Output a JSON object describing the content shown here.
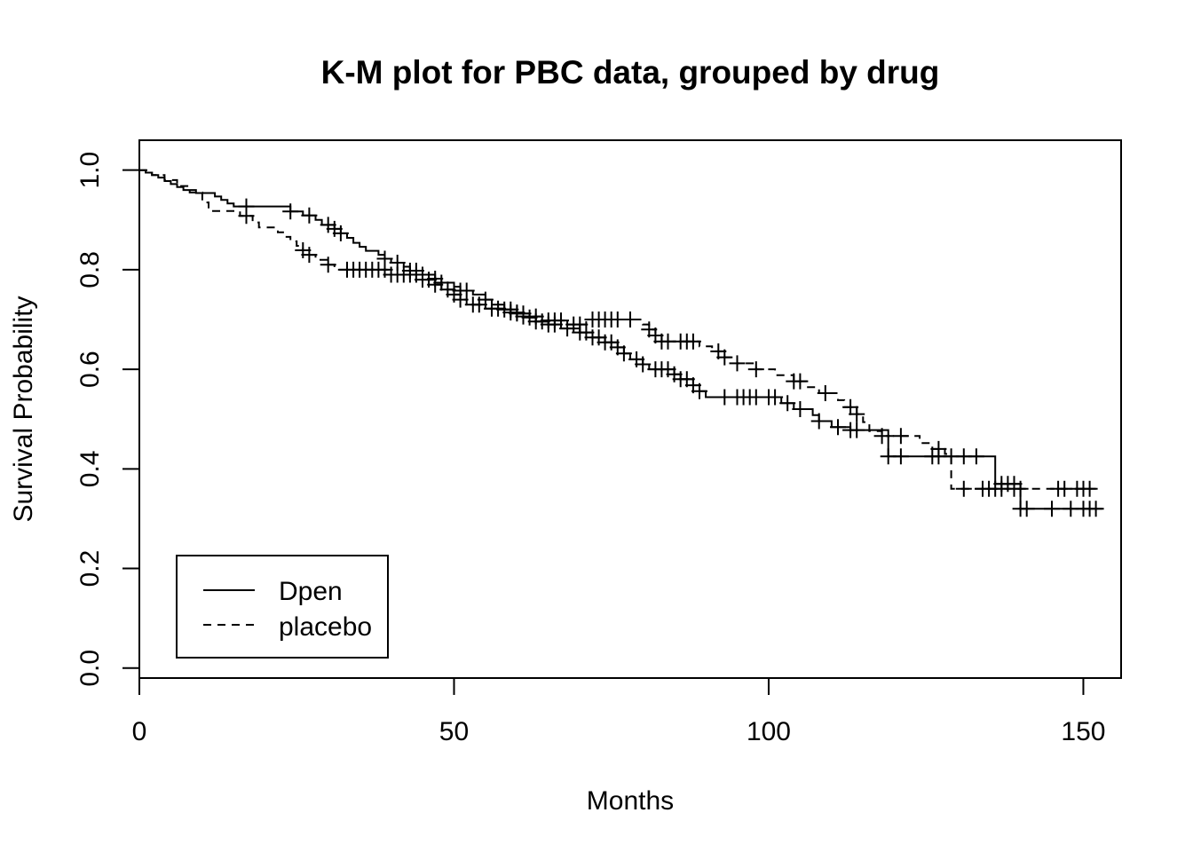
{
  "chart_data": {
    "type": "line",
    "subtype": "kaplan-meier-step",
    "title": "K-M plot for PBC data, grouped by drug",
    "xlabel": "Months",
    "ylabel": "Survival Probability",
    "xlim": [
      0,
      156
    ],
    "ylim": [
      -0.02,
      1.06
    ],
    "x_ticks": [
      0,
      50,
      100,
      150
    ],
    "x_tick_labels": [
      "0",
      "50",
      "100",
      "150"
    ],
    "y_ticks": [
      0.0,
      0.2,
      0.4,
      0.6,
      0.8,
      1.0
    ],
    "y_tick_labels": [
      "0.0",
      "0.2",
      "0.4",
      "0.6",
      "0.8",
      "1.0"
    ],
    "grid": false,
    "legend": {
      "position": "bottom-left",
      "entries": [
        "Dpen",
        "placebo"
      ]
    },
    "series": [
      {
        "name": "Dpen",
        "line_style": "solid",
        "steps": [
          [
            0,
            1.0
          ],
          [
            1,
            0.995
          ],
          [
            2,
            0.99
          ],
          [
            3,
            0.985
          ],
          [
            4,
            0.978
          ],
          [
            5,
            0.972
          ],
          [
            6,
            0.966
          ],
          [
            7,
            0.96
          ],
          [
            9,
            0.954
          ],
          [
            12,
            0.947
          ],
          [
            13,
            0.94
          ],
          [
            14,
            0.933
          ],
          [
            15,
            0.927
          ],
          [
            24,
            0.917
          ],
          [
            26,
            0.909
          ],
          [
            28,
            0.9
          ],
          [
            29,
            0.89
          ],
          [
            31,
            0.882
          ],
          [
            32,
            0.873
          ],
          [
            33,
            0.864
          ],
          [
            34,
            0.854
          ],
          [
            35,
            0.846
          ],
          [
            36,
            0.838
          ],
          [
            38,
            0.83
          ],
          [
            39,
            0.822
          ],
          [
            40,
            0.814
          ],
          [
            42,
            0.806
          ],
          [
            43,
            0.798
          ],
          [
            45,
            0.79
          ],
          [
            47,
            0.782
          ],
          [
            48,
            0.774
          ],
          [
            50,
            0.766
          ],
          [
            51,
            0.758
          ],
          [
            53,
            0.75
          ],
          [
            55,
            0.74
          ],
          [
            56,
            0.73
          ],
          [
            58,
            0.72
          ],
          [
            60,
            0.712
          ],
          [
            62,
            0.704
          ],
          [
            63,
            0.696
          ],
          [
            65,
            0.69
          ],
          [
            67,
            0.682
          ],
          [
            70,
            0.674
          ],
          [
            72,
            0.664
          ],
          [
            74,
            0.654
          ],
          [
            76,
            0.644
          ],
          [
            77,
            0.632
          ],
          [
            78,
            0.62
          ],
          [
            80,
            0.61
          ],
          [
            81,
            0.6
          ],
          [
            85,
            0.59
          ],
          [
            86,
            0.58
          ],
          [
            88,
            0.568
          ],
          [
            89,
            0.556
          ],
          [
            90,
            0.544
          ],
          [
            102,
            0.532
          ],
          [
            104,
            0.52
          ],
          [
            107,
            0.508
          ],
          [
            108,
            0.496
          ],
          [
            110,
            0.484
          ],
          [
            113,
            0.478
          ],
          [
            119,
            0.425
          ],
          [
            136,
            0.37
          ],
          [
            140,
            0.32
          ],
          [
            153,
            0.32
          ]
        ],
        "censored": [
          17,
          24,
          27,
          30,
          31,
          32,
          39,
          41,
          43,
          44,
          45,
          47,
          48,
          51,
          52,
          55,
          58,
          59,
          60,
          61,
          62,
          63,
          64,
          65,
          66,
          68,
          70,
          71,
          72,
          73,
          74,
          75,
          76,
          77,
          79,
          80,
          82,
          83,
          84,
          85,
          86,
          87,
          88,
          89,
          93,
          95,
          96,
          97,
          98,
          100,
          101,
          103,
          105,
          108,
          111,
          113,
          114,
          119,
          121,
          126,
          127,
          129,
          131,
          133,
          137,
          138,
          139,
          140,
          141,
          145,
          148,
          150,
          151,
          152
        ]
      },
      {
        "name": "placebo",
        "line_style": "dashed",
        "steps": [
          [
            0,
            1.0
          ],
          [
            2,
            0.99
          ],
          [
            4,
            0.98
          ],
          [
            6,
            0.968
          ],
          [
            8,
            0.955
          ],
          [
            10,
            0.935
          ],
          [
            11,
            0.918
          ],
          [
            16,
            0.908
          ],
          [
            18,
            0.895
          ],
          [
            19,
            0.885
          ],
          [
            22,
            0.875
          ],
          [
            23,
            0.866
          ],
          [
            24,
            0.857
          ],
          [
            25,
            0.848
          ],
          [
            26,
            0.839
          ],
          [
            27,
            0.83
          ],
          [
            28,
            0.82
          ],
          [
            30,
            0.81
          ],
          [
            31,
            0.8
          ],
          [
            40,
            0.79
          ],
          [
            45,
            0.78
          ],
          [
            47,
            0.77
          ],
          [
            48,
            0.76
          ],
          [
            50,
            0.75
          ],
          [
            51,
            0.74
          ],
          [
            52,
            0.73
          ],
          [
            55,
            0.722
          ],
          [
            58,
            0.714
          ],
          [
            61,
            0.706
          ],
          [
            64,
            0.698
          ],
          [
            68,
            0.69
          ],
          [
            71,
            0.7
          ],
          [
            80,
            0.69
          ],
          [
            81,
            0.68
          ],
          [
            82,
            0.668
          ],
          [
            83,
            0.656
          ],
          [
            89,
            0.646
          ],
          [
            91,
            0.636
          ],
          [
            93,
            0.624
          ],
          [
            95,
            0.612
          ],
          [
            98,
            0.6
          ],
          [
            101,
            0.588
          ],
          [
            104,
            0.576
          ],
          [
            106,
            0.564
          ],
          [
            108,
            0.552
          ],
          [
            111,
            0.538
          ],
          [
            112,
            0.524
          ],
          [
            114,
            0.51
          ],
          [
            115,
            0.494
          ],
          [
            116,
            0.476
          ],
          [
            118,
            0.466
          ],
          [
            124,
            0.452
          ],
          [
            126,
            0.44
          ],
          [
            128,
            0.43
          ],
          [
            129,
            0.36
          ],
          [
            152,
            0.36
          ]
        ],
        "censored": [
          17,
          26,
          27,
          30,
          33,
          34,
          35,
          36,
          37,
          38,
          39,
          40,
          41,
          42,
          43,
          44,
          45,
          46,
          47,
          49,
          50,
          51,
          53,
          54,
          56,
          57,
          59,
          60,
          61,
          63,
          65,
          66,
          67,
          69,
          70,
          72,
          73,
          74,
          75,
          76,
          78,
          81,
          82,
          83,
          84,
          86,
          87,
          88,
          92,
          93,
          95,
          98,
          104,
          105,
          109,
          113,
          114,
          118,
          121,
          127,
          131,
          134,
          135,
          136,
          137,
          139,
          140,
          146,
          147,
          149,
          150,
          151
        ]
      }
    ]
  }
}
